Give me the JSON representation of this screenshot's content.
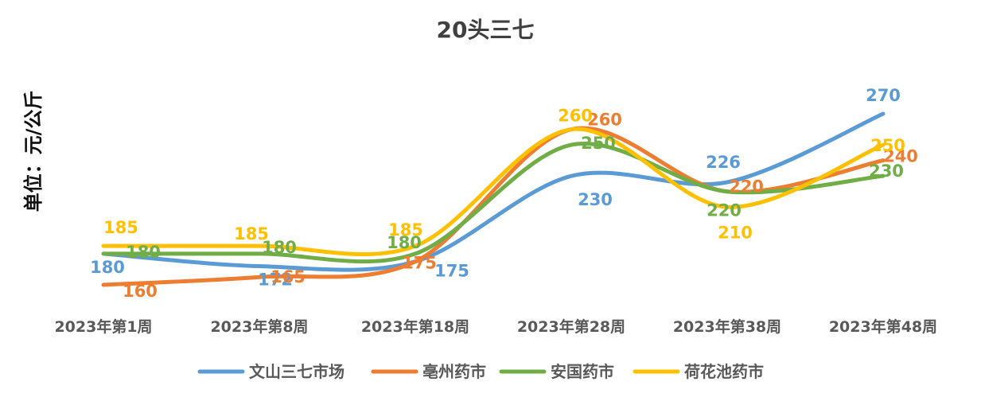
{
  "chart_data": {
    "type": "line",
    "title": "20头三七",
    "ylabel": "单位：元/公斤",
    "xlabel": "",
    "categories": [
      "2023年第1周",
      "2023年第8周",
      "2023年第18周",
      "2023年第28周",
      "2023年第38周",
      "2023年第48周"
    ],
    "ylim": [
      140,
      290
    ],
    "grid": false,
    "smooth": true,
    "legend_position": "bottom",
    "series": [
      {
        "name": "文山三七市场",
        "color": "#5B9BD5",
        "values": [
          180,
          172,
          175,
          230,
          226,
          270
        ]
      },
      {
        "name": "亳州药市",
        "color": "#ED7D31",
        "values": [
          160,
          165,
          175,
          260,
          220,
          240
        ]
      },
      {
        "name": "安国药市",
        "color": "#70AD47",
        "values": [
          180,
          180,
          180,
          250,
          220,
          230
        ]
      },
      {
        "name": "荷花池药市",
        "color": "#FFC000",
        "values": [
          185,
          185,
          185,
          260,
          210,
          250
        ]
      }
    ]
  }
}
